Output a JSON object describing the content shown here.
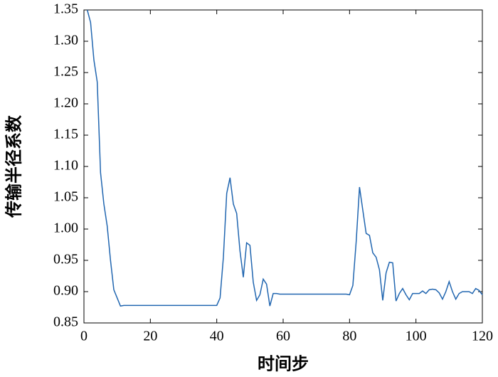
{
  "chart_data": {
    "type": "line",
    "xlabel": "时间步",
    "ylabel": "传输半径系数",
    "x": [
      1,
      2,
      3,
      4,
      5,
      6,
      7,
      8,
      9,
      10,
      11,
      12,
      13,
      14,
      15,
      16,
      17,
      18,
      19,
      20,
      21,
      22,
      23,
      24,
      25,
      26,
      27,
      28,
      29,
      30,
      31,
      32,
      33,
      34,
      35,
      36,
      37,
      38,
      39,
      40,
      41,
      42,
      43,
      44,
      45,
      46,
      47,
      48,
      49,
      50,
      51,
      52,
      53,
      54,
      55,
      56,
      57,
      58,
      59,
      60,
      61,
      62,
      63,
      64,
      65,
      66,
      67,
      68,
      69,
      70,
      71,
      72,
      73,
      74,
      75,
      76,
      77,
      78,
      79,
      80,
      81,
      82,
      83,
      84,
      85,
      86,
      87,
      88,
      89,
      90,
      91,
      92,
      93,
      94,
      95,
      96,
      97,
      98,
      99,
      100,
      101,
      102,
      103,
      104,
      105,
      106,
      107,
      108,
      109,
      110,
      111,
      112,
      113,
      114,
      115,
      116,
      117,
      118,
      119,
      120
    ],
    "series": [
      {
        "color": "#2166b0",
        "values": [
          1.35,
          1.33,
          1.27,
          1.235,
          1.09,
          1.04,
          1.005,
          0.95,
          0.903,
          0.89,
          0.877,
          0.878,
          0.878,
          0.878,
          0.878,
          0.878,
          0.878,
          0.878,
          0.878,
          0.878,
          0.878,
          0.878,
          0.878,
          0.878,
          0.878,
          0.878,
          0.878,
          0.878,
          0.878,
          0.878,
          0.878,
          0.878,
          0.878,
          0.878,
          0.878,
          0.878,
          0.878,
          0.878,
          0.878,
          0.878,
          0.89,
          0.955,
          1.057,
          1.082,
          1.04,
          1.025,
          0.965,
          0.923,
          0.978,
          0.974,
          0.915,
          0.886,
          0.895,
          0.92,
          0.912,
          0.877,
          0.897,
          0.897,
          0.896,
          0.896,
          0.896,
          0.896,
          0.896,
          0.896,
          0.896,
          0.896,
          0.896,
          0.896,
          0.896,
          0.896,
          0.896,
          0.896,
          0.896,
          0.896,
          0.896,
          0.896,
          0.896,
          0.896,
          0.896,
          0.895,
          0.91,
          0.98,
          1.067,
          1.03,
          0.993,
          0.99,
          0.962,
          0.955,
          0.935,
          0.886,
          0.93,
          0.947,
          0.946,
          0.885,
          0.897,
          0.905,
          0.895,
          0.887,
          0.897,
          0.897,
          0.897,
          0.901,
          0.897,
          0.903,
          0.904,
          0.903,
          0.898,
          0.888,
          0.9,
          0.916,
          0.9,
          0.888,
          0.897,
          0.9,
          0.9,
          0.9,
          0.897,
          0.905,
          0.902,
          0.895
        ]
      }
    ],
    "xlim": [
      0,
      120
    ],
    "xticks": [
      0,
      20,
      40,
      60,
      80,
      100,
      120
    ],
    "ylim": [
      0.85,
      1.35
    ],
    "yticks": [
      0.85,
      {
        "value": 0.9,
        "label": "0.90"
      },
      0.95,
      {
        "value": 1.0,
        "label": "1.00"
      },
      1.05,
      {
        "value": 1.1,
        "label": "1.10"
      },
      1.15,
      {
        "value": 1.2,
        "label": "1.20"
      },
      1.25,
      {
        "value": 1.3,
        "label": "1.30"
      },
      1.35
    ]
  }
}
